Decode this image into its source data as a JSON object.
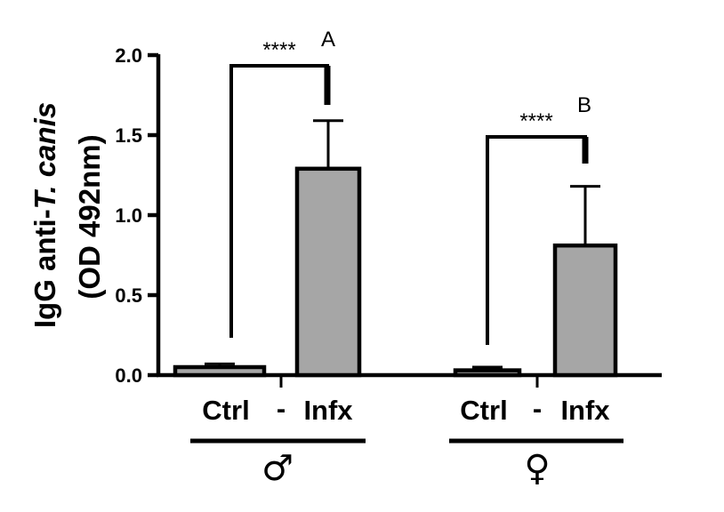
{
  "chart_data": {
    "type": "bar",
    "ylabel_line1_prefix": "IgG anti-",
    "ylabel_line1_italic": "T. canis",
    "ylabel_line2": "(OD 492nm)",
    "ylim": [
      0,
      2.0
    ],
    "yticks": [
      "0.0",
      "0.5",
      "1.0",
      "1.5",
      "2.0"
    ],
    "groups": [
      {
        "name": "♂",
        "categories": [
          "Ctrl",
          "Infx"
        ],
        "separator": "-",
        "values": [
          0.05,
          1.29
        ],
        "errors": [
          0.02,
          0.3
        ],
        "significance": "****",
        "letter": "A"
      },
      {
        "name": "♀",
        "categories": [
          "Ctrl",
          "Infx"
        ],
        "separator": "-",
        "values": [
          0.03,
          0.81
        ],
        "errors": [
          0.02,
          0.37
        ],
        "significance": "****",
        "letter": "B"
      }
    ],
    "colors": {
      "ctrl_fill": "#a6a6a6",
      "infx_fill": "#a6a6a6",
      "stroke": "#000000"
    },
    "grid": false,
    "legend": "none"
  }
}
